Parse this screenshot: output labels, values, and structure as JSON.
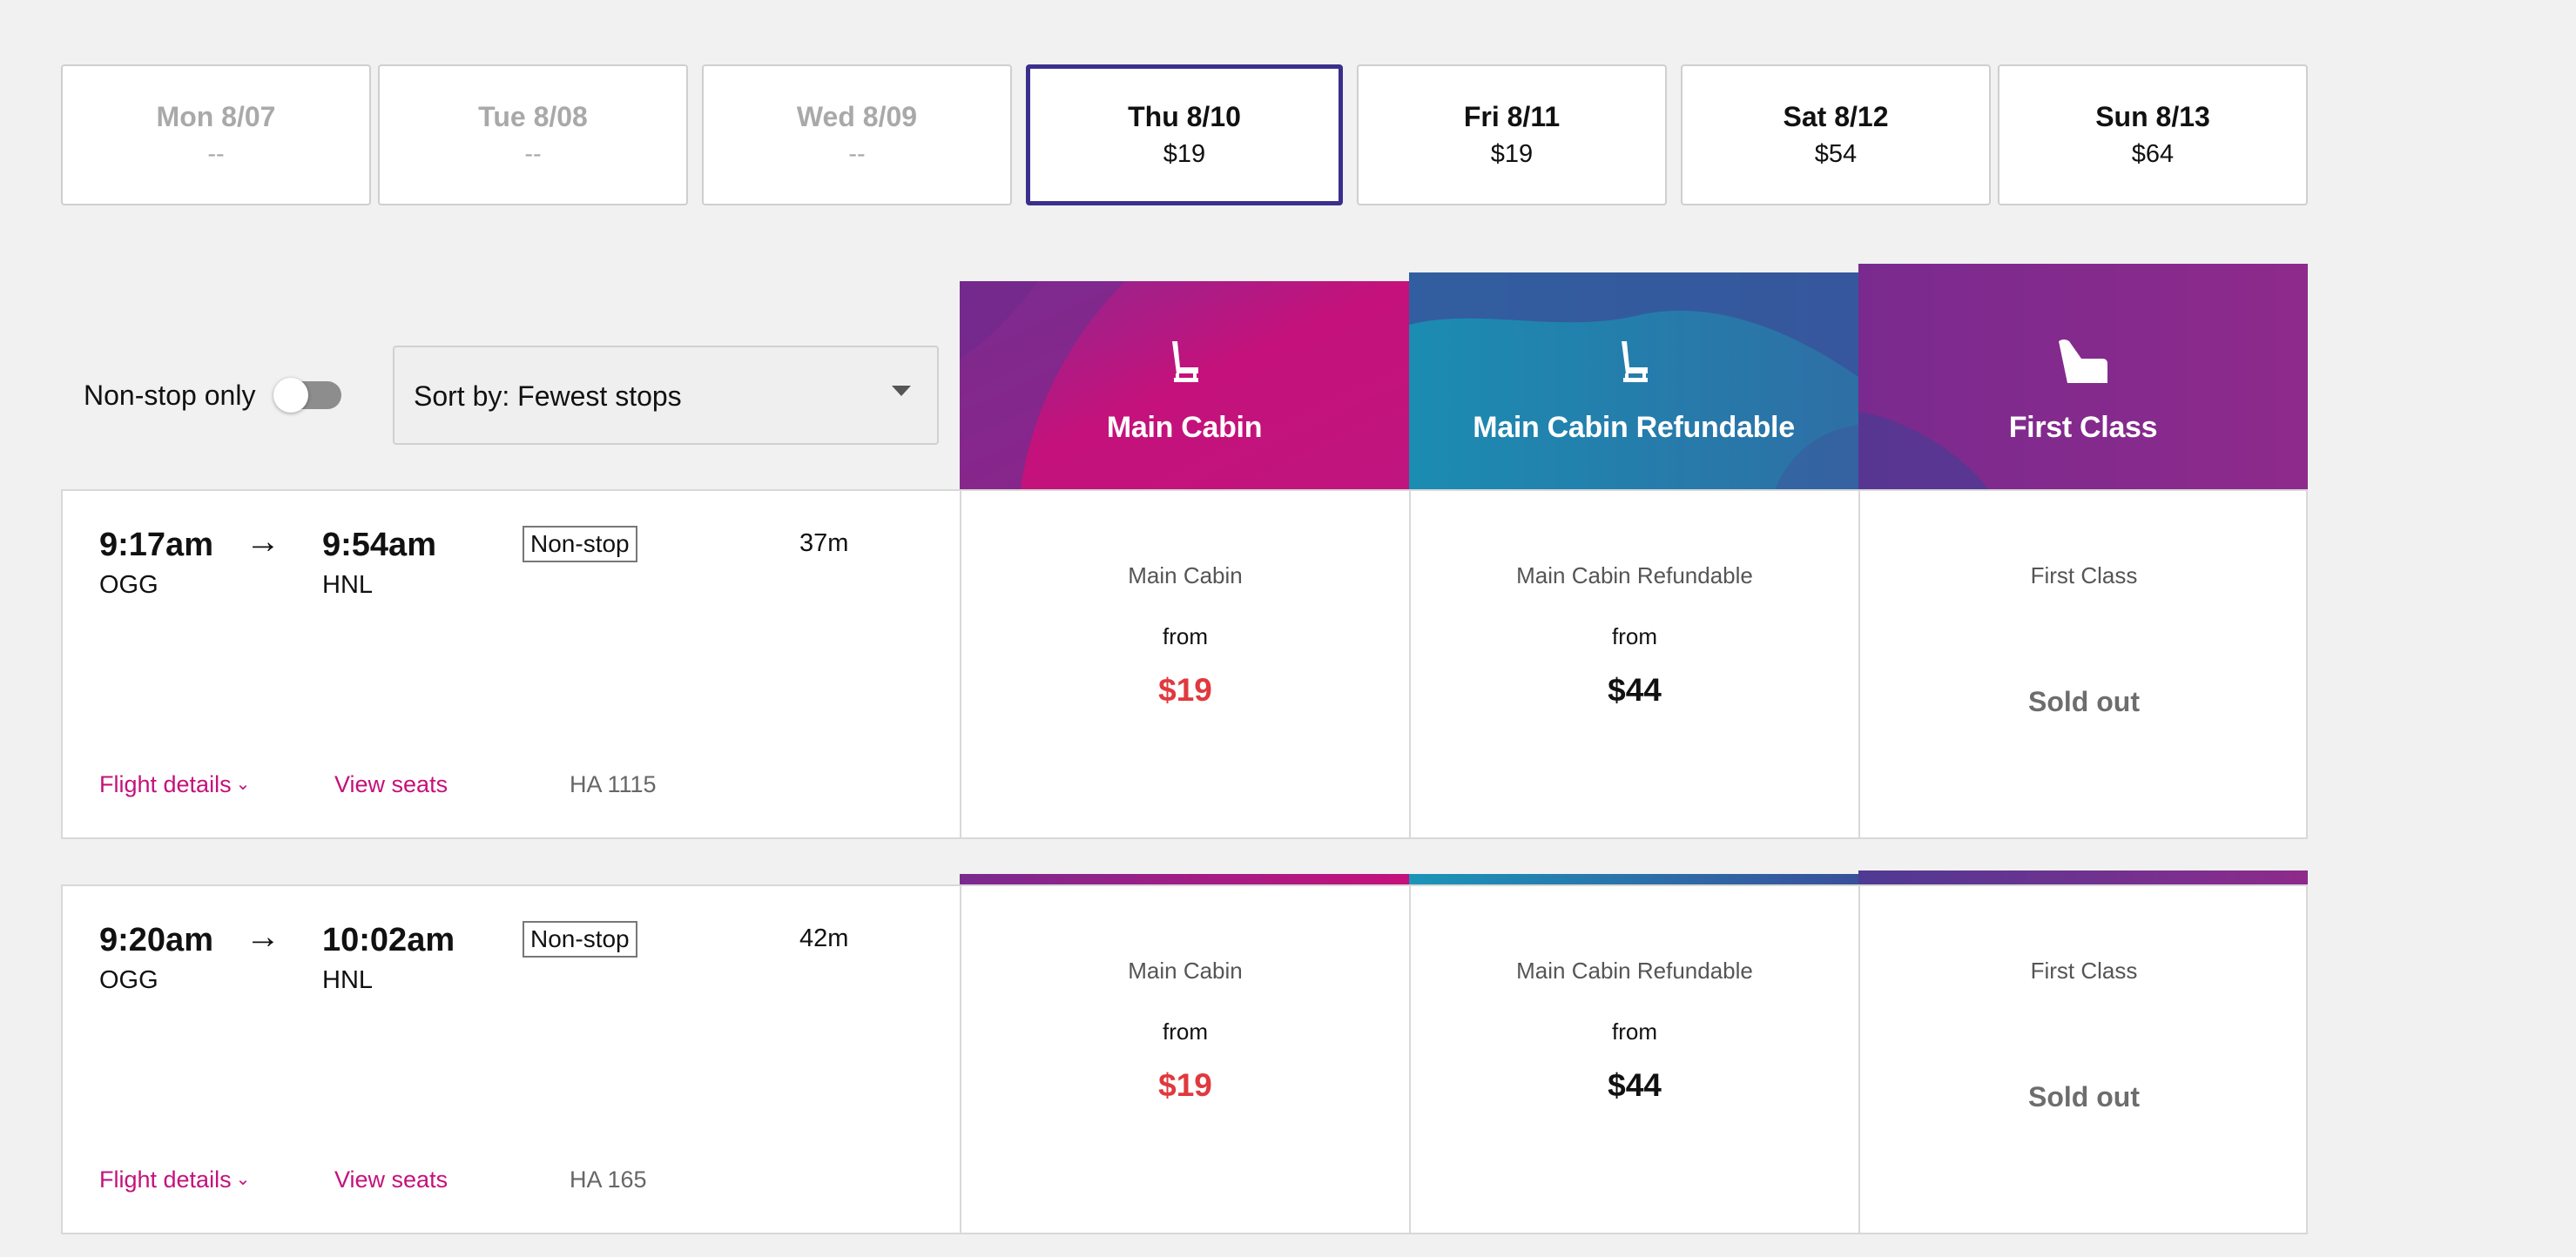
{
  "dates": [
    {
      "label": "Mon 8/07",
      "price": "--",
      "state": "disabled"
    },
    {
      "label": "Tue 8/08",
      "price": "--",
      "state": "disabled"
    },
    {
      "label": "Wed 8/09",
      "price": "--",
      "state": "disabled"
    },
    {
      "label": "Thu 8/10",
      "price": "$19",
      "state": "selected"
    },
    {
      "label": "Fri 8/11",
      "price": "$19",
      "state": "available"
    },
    {
      "label": "Sat 8/12",
      "price": "$54",
      "state": "available"
    },
    {
      "label": "Sun 8/13",
      "price": "$64",
      "state": "available"
    }
  ],
  "filters": {
    "nonstop_label": "Non-stop only",
    "nonstop_enabled": false,
    "sort_label": "Sort by: Fewest stops"
  },
  "cabins": [
    {
      "title": "Main Cabin",
      "icon": "seat-icon",
      "colors": [
        "#7a2a8f",
        "#c5117b"
      ]
    },
    {
      "title": "Main Cabin Refundable",
      "icon": "seat-icon",
      "colors": [
        "#1a8ab0",
        "#3a4f9a"
      ]
    },
    {
      "title": "First Class",
      "icon": "lie-flat-seat-icon",
      "colors": [
        "#6a2a8c",
        "#8e2a8c"
      ]
    }
  ],
  "flights": [
    {
      "depart_time": "9:17am",
      "arrive_time": "9:54am",
      "origin": "OGG",
      "destination": "HNL",
      "stops": "Non-stop",
      "duration": "37m",
      "details_label": "Flight details",
      "seats_label": "View seats",
      "flight_number": "HA 1115",
      "fares": [
        {
          "name": "Main Cabin",
          "from": "from",
          "price": "$19",
          "status": "available"
        },
        {
          "name": "Main Cabin Refundable",
          "from": "from",
          "price": "$44",
          "status": "available"
        },
        {
          "name": "First Class",
          "status_text": "Sold out",
          "status": "sold-out"
        }
      ]
    },
    {
      "depart_time": "9:20am",
      "arrive_time": "10:02am",
      "origin": "OGG",
      "destination": "HNL",
      "stops": "Non-stop",
      "duration": "42m",
      "details_label": "Flight details",
      "seats_label": "View seats",
      "flight_number": "HA 165",
      "fares": [
        {
          "name": "Main Cabin",
          "from": "from",
          "price": "$19",
          "status": "available"
        },
        {
          "name": "Main Cabin Refundable",
          "from": "from",
          "price": "$44",
          "status": "available"
        },
        {
          "name": "First Class",
          "status_text": "Sold out",
          "status": "sold-out"
        }
      ]
    }
  ],
  "colors": {
    "link": "#c5117b",
    "sale_price": "#e0393e",
    "selected_border": "#3a2f8c",
    "sold_out": "#6d6d6d"
  }
}
